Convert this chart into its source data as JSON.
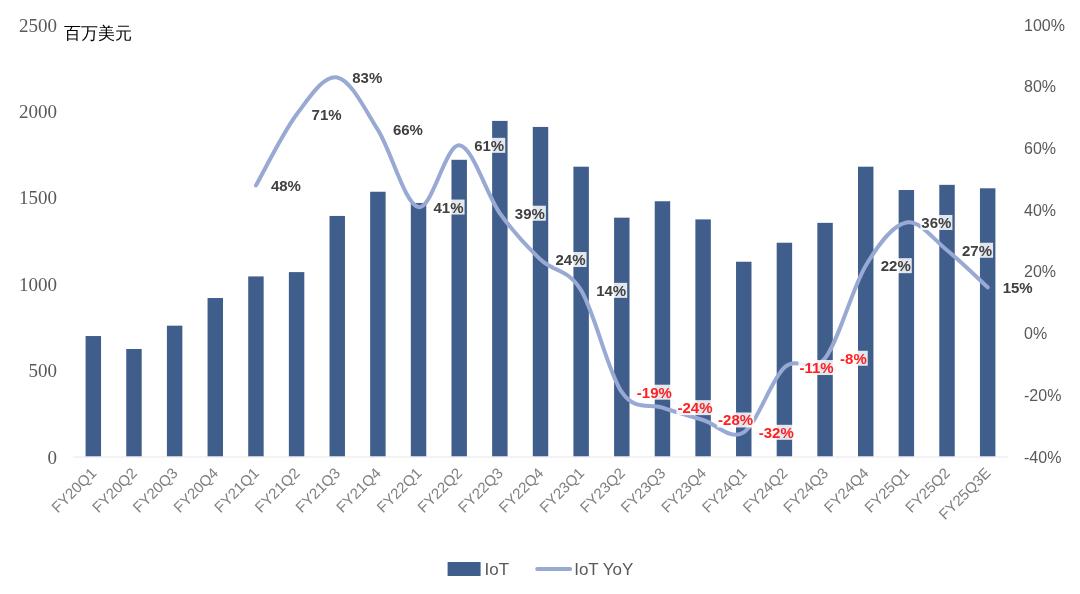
{
  "chart_data": {
    "type": "bar",
    "ylabel": "百万美元",
    "categories": [
      "FY20Q1",
      "FY20Q2",
      "FY20Q3",
      "FY20Q4",
      "FY21Q1",
      "FY21Q2",
      "FY21Q3",
      "FY21Q4",
      "FY22Q1",
      "FY22Q2",
      "FY22Q3",
      "FY22Q4",
      "FY23Q1",
      "FY23Q2",
      "FY23Q3",
      "FY23Q4",
      "FY24Q1",
      "FY24Q2",
      "FY24Q3",
      "FY24Q4",
      "FY25Q1",
      "FY25Q2",
      "FY25Q3E"
    ],
    "series": [
      {
        "name": "IoT",
        "color": "#405e8b",
        "values": [
          700,
          625,
          760,
          920,
          1045,
          1070,
          1395,
          1535,
          1470,
          1720,
          1945,
          1910,
          1680,
          1385,
          1480,
          1375,
          1130,
          1240,
          1355,
          1680,
          1545,
          1575,
          1555
        ]
      },
      {
        "name": "IoT YoY",
        "type": "line",
        "axis": "y2",
        "color": "#98a9d3",
        "values": [
          null,
          null,
          null,
          null,
          48,
          71,
          83,
          66,
          41,
          61,
          39,
          24,
          14,
          -19,
          -24,
          -28,
          -32,
          -11,
          -8,
          22,
          36,
          27,
          15
        ],
        "value_labels": [
          null,
          null,
          null,
          null,
          "48%",
          "71%",
          "83%",
          "66%",
          "41%",
          "61%",
          "39%",
          "24%",
          "14%",
          "-19%",
          "-24%",
          "-28%",
          "-32%",
          "-11%",
          "-8%",
          "22%",
          "36%",
          "27%",
          "15%"
        ]
      }
    ],
    "ylim": [
      0,
      2500
    ],
    "yticks": [
      0,
      500,
      1000,
      1500,
      2000,
      2500
    ],
    "y2lim": [
      -40,
      100
    ],
    "y2ticks": [
      {
        "value": -40,
        "label": "-40%"
      },
      {
        "value": -20,
        "label": "-20%"
      },
      {
        "value": 0,
        "label": "0%"
      },
      {
        "value": 20,
        "label": "20%"
      },
      {
        "value": 40,
        "label": "40%"
      },
      {
        "value": 60,
        "label": "60%"
      },
      {
        "value": 80,
        "label": "80%"
      },
      {
        "value": 100,
        "label": "100%"
      }
    ],
    "legend": "bottom",
    "marker": "none"
  }
}
